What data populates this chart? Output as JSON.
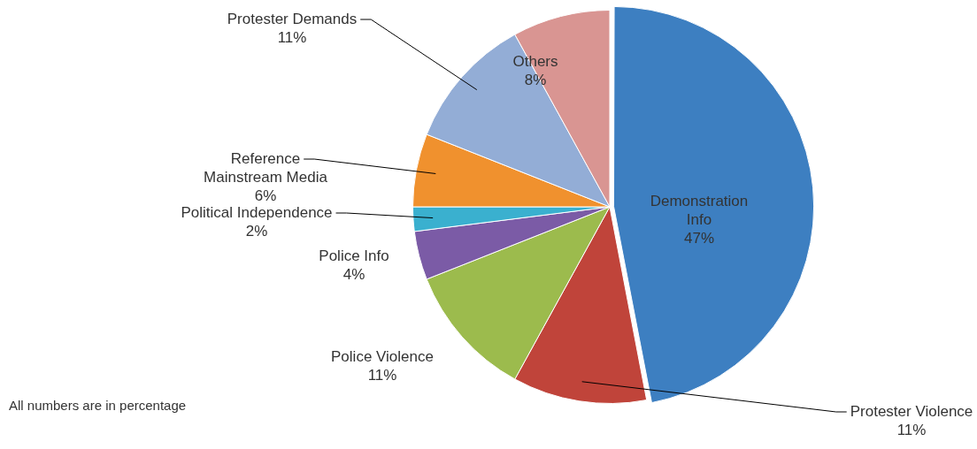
{
  "chart_data": {
    "type": "pie",
    "categories": [
      "Demonstration Info",
      "Protester Violence",
      "Police Violence",
      "Police Info",
      "Political Independence",
      "Reference Mainstream Media",
      "Protester Demands",
      "Others"
    ],
    "values": [
      47,
      11,
      11,
      4,
      2,
      6,
      11,
      8
    ],
    "value_labels": [
      "47%",
      "11%",
      "11%",
      "4%",
      "2%",
      "6%",
      "11%",
      "8%"
    ],
    "colors": [
      "#3d7fc1",
      "#c0443a",
      "#9cbb4d",
      "#7b5ba6",
      "#3ab0cf",
      "#f0912e",
      "#93add6",
      "#d99592"
    ],
    "legend": false,
    "annotations": [
      "All numbers are in percentage"
    ]
  }
}
